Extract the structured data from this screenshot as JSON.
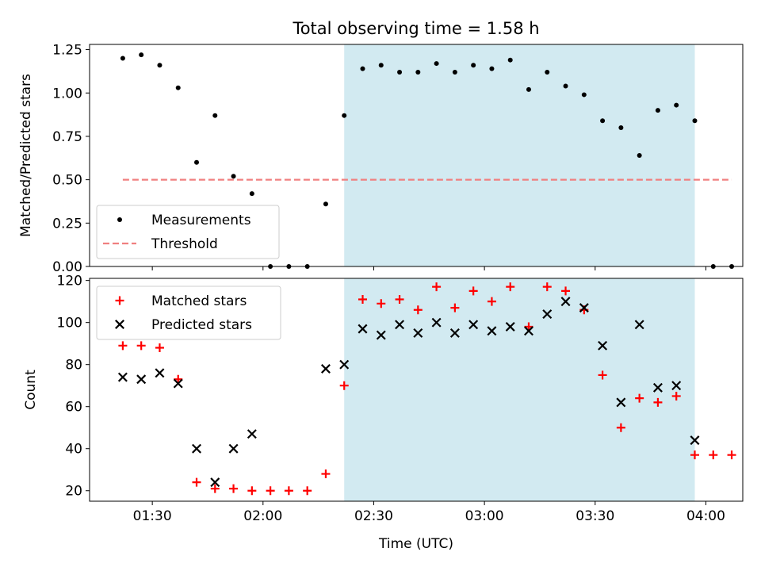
{
  "chart_data": [
    {
      "type": "scatter",
      "title": "Total observing time = 1.58 h",
      "xlabel": "",
      "ylabel": "Matched/Predicted stars",
      "xlim": [
        "01:13",
        "04:10"
      ],
      "ylim": [
        0,
        1.28
      ],
      "yticks": [
        0.0,
        0.25,
        0.5,
        0.75,
        1.0,
        1.25
      ],
      "ytick_labels": [
        "0.00",
        "0.25",
        "0.50",
        "0.75",
        "1.00",
        "1.25"
      ],
      "xticks": [
        "01:30",
        "02:00",
        "02:30",
        "03:00",
        "03:30",
        "04:00"
      ],
      "shaded_interval": [
        "02:22",
        "03:57"
      ],
      "shade_color": "#add8e6",
      "legend_position": "lower left",
      "series": [
        {
          "name": "Measurements",
          "marker": "dot",
          "color": "#000000",
          "x": [
            "01:22",
            "01:27",
            "01:32",
            "01:37",
            "01:42",
            "01:47",
            "01:52",
            "01:57",
            "02:02",
            "02:07",
            "02:12",
            "02:17",
            "02:22",
            "02:27",
            "02:32",
            "02:37",
            "02:42",
            "02:47",
            "02:52",
            "02:57",
            "03:02",
            "03:07",
            "03:12",
            "03:17",
            "03:22",
            "03:27",
            "03:32",
            "03:37",
            "03:42",
            "03:47",
            "03:52",
            "03:57",
            "04:02",
            "04:07"
          ],
          "y": [
            1.2,
            1.22,
            1.16,
            1.03,
            0.6,
            0.87,
            0.52,
            0.42,
            0.0,
            0.0,
            0.0,
            0.36,
            0.87,
            1.14,
            1.16,
            1.12,
            1.12,
            1.17,
            1.12,
            1.16,
            1.14,
            1.19,
            1.02,
            1.12,
            1.04,
            0.99,
            0.84,
            0.8,
            0.64,
            0.9,
            0.93,
            0.84,
            0.0,
            0.0
          ]
        },
        {
          "name": "Threshold",
          "style": "dashed",
          "color": "#f08080",
          "x": [
            "01:22",
            "04:07"
          ],
          "y": [
            0.5,
            0.5
          ]
        }
      ]
    },
    {
      "type": "scatter",
      "title": "",
      "xlabel": "Time (UTC)",
      "ylabel": "Count",
      "xlim": [
        "01:13",
        "04:10"
      ],
      "ylim": [
        15,
        121
      ],
      "yticks": [
        20,
        40,
        60,
        80,
        100,
        120
      ],
      "ytick_labels": [
        "20",
        "40",
        "60",
        "80",
        "100",
        "120"
      ],
      "xticks": [
        "01:30",
        "02:00",
        "02:30",
        "03:00",
        "03:30",
        "04:00"
      ],
      "shaded_interval": [
        "02:22",
        "03:57"
      ],
      "shade_color": "#add8e6",
      "legend_position": "upper left",
      "series": [
        {
          "name": "Matched stars",
          "marker": "plus",
          "color": "#ff0000",
          "x": [
            "01:22",
            "01:27",
            "01:32",
            "01:37",
            "01:42",
            "01:47",
            "01:52",
            "01:57",
            "02:02",
            "02:07",
            "02:12",
            "02:17",
            "02:22",
            "02:27",
            "02:32",
            "02:37",
            "02:42",
            "02:47",
            "02:52",
            "02:57",
            "03:02",
            "03:07",
            "03:12",
            "03:17",
            "03:22",
            "03:27",
            "03:32",
            "03:37",
            "03:42",
            "03:47",
            "03:52",
            "03:57",
            "04:02",
            "04:07"
          ],
          "y": [
            89,
            89,
            88,
            73,
            24,
            21,
            21,
            20,
            20,
            20,
            20,
            28,
            70,
            111,
            109,
            111,
            106,
            117,
            107,
            115,
            110,
            117,
            98,
            117,
            115,
            106,
            75,
            50,
            64,
            62,
            65,
            37,
            37,
            37
          ]
        },
        {
          "name": "Predicted stars",
          "marker": "x",
          "color": "#000000",
          "x": [
            "01:22",
            "01:27",
            "01:32",
            "01:37",
            "01:42",
            "01:47",
            "01:52",
            "01:57",
            "02:17",
            "02:22",
            "02:27",
            "02:32",
            "02:37",
            "02:42",
            "02:47",
            "02:52",
            "02:57",
            "03:02",
            "03:07",
            "03:12",
            "03:17",
            "03:22",
            "03:27",
            "03:32",
            "03:37",
            "03:42",
            "03:47",
            "03:52",
            "03:57"
          ],
          "y": [
            74,
            73,
            76,
            71,
            40,
            24,
            40,
            47,
            78,
            80,
            97,
            94,
            99,
            95,
            100,
            95,
            99,
            96,
            98,
            96,
            104,
            110,
            107,
            89,
            62,
            99,
            69,
            70,
            44
          ]
        }
      ]
    }
  ]
}
